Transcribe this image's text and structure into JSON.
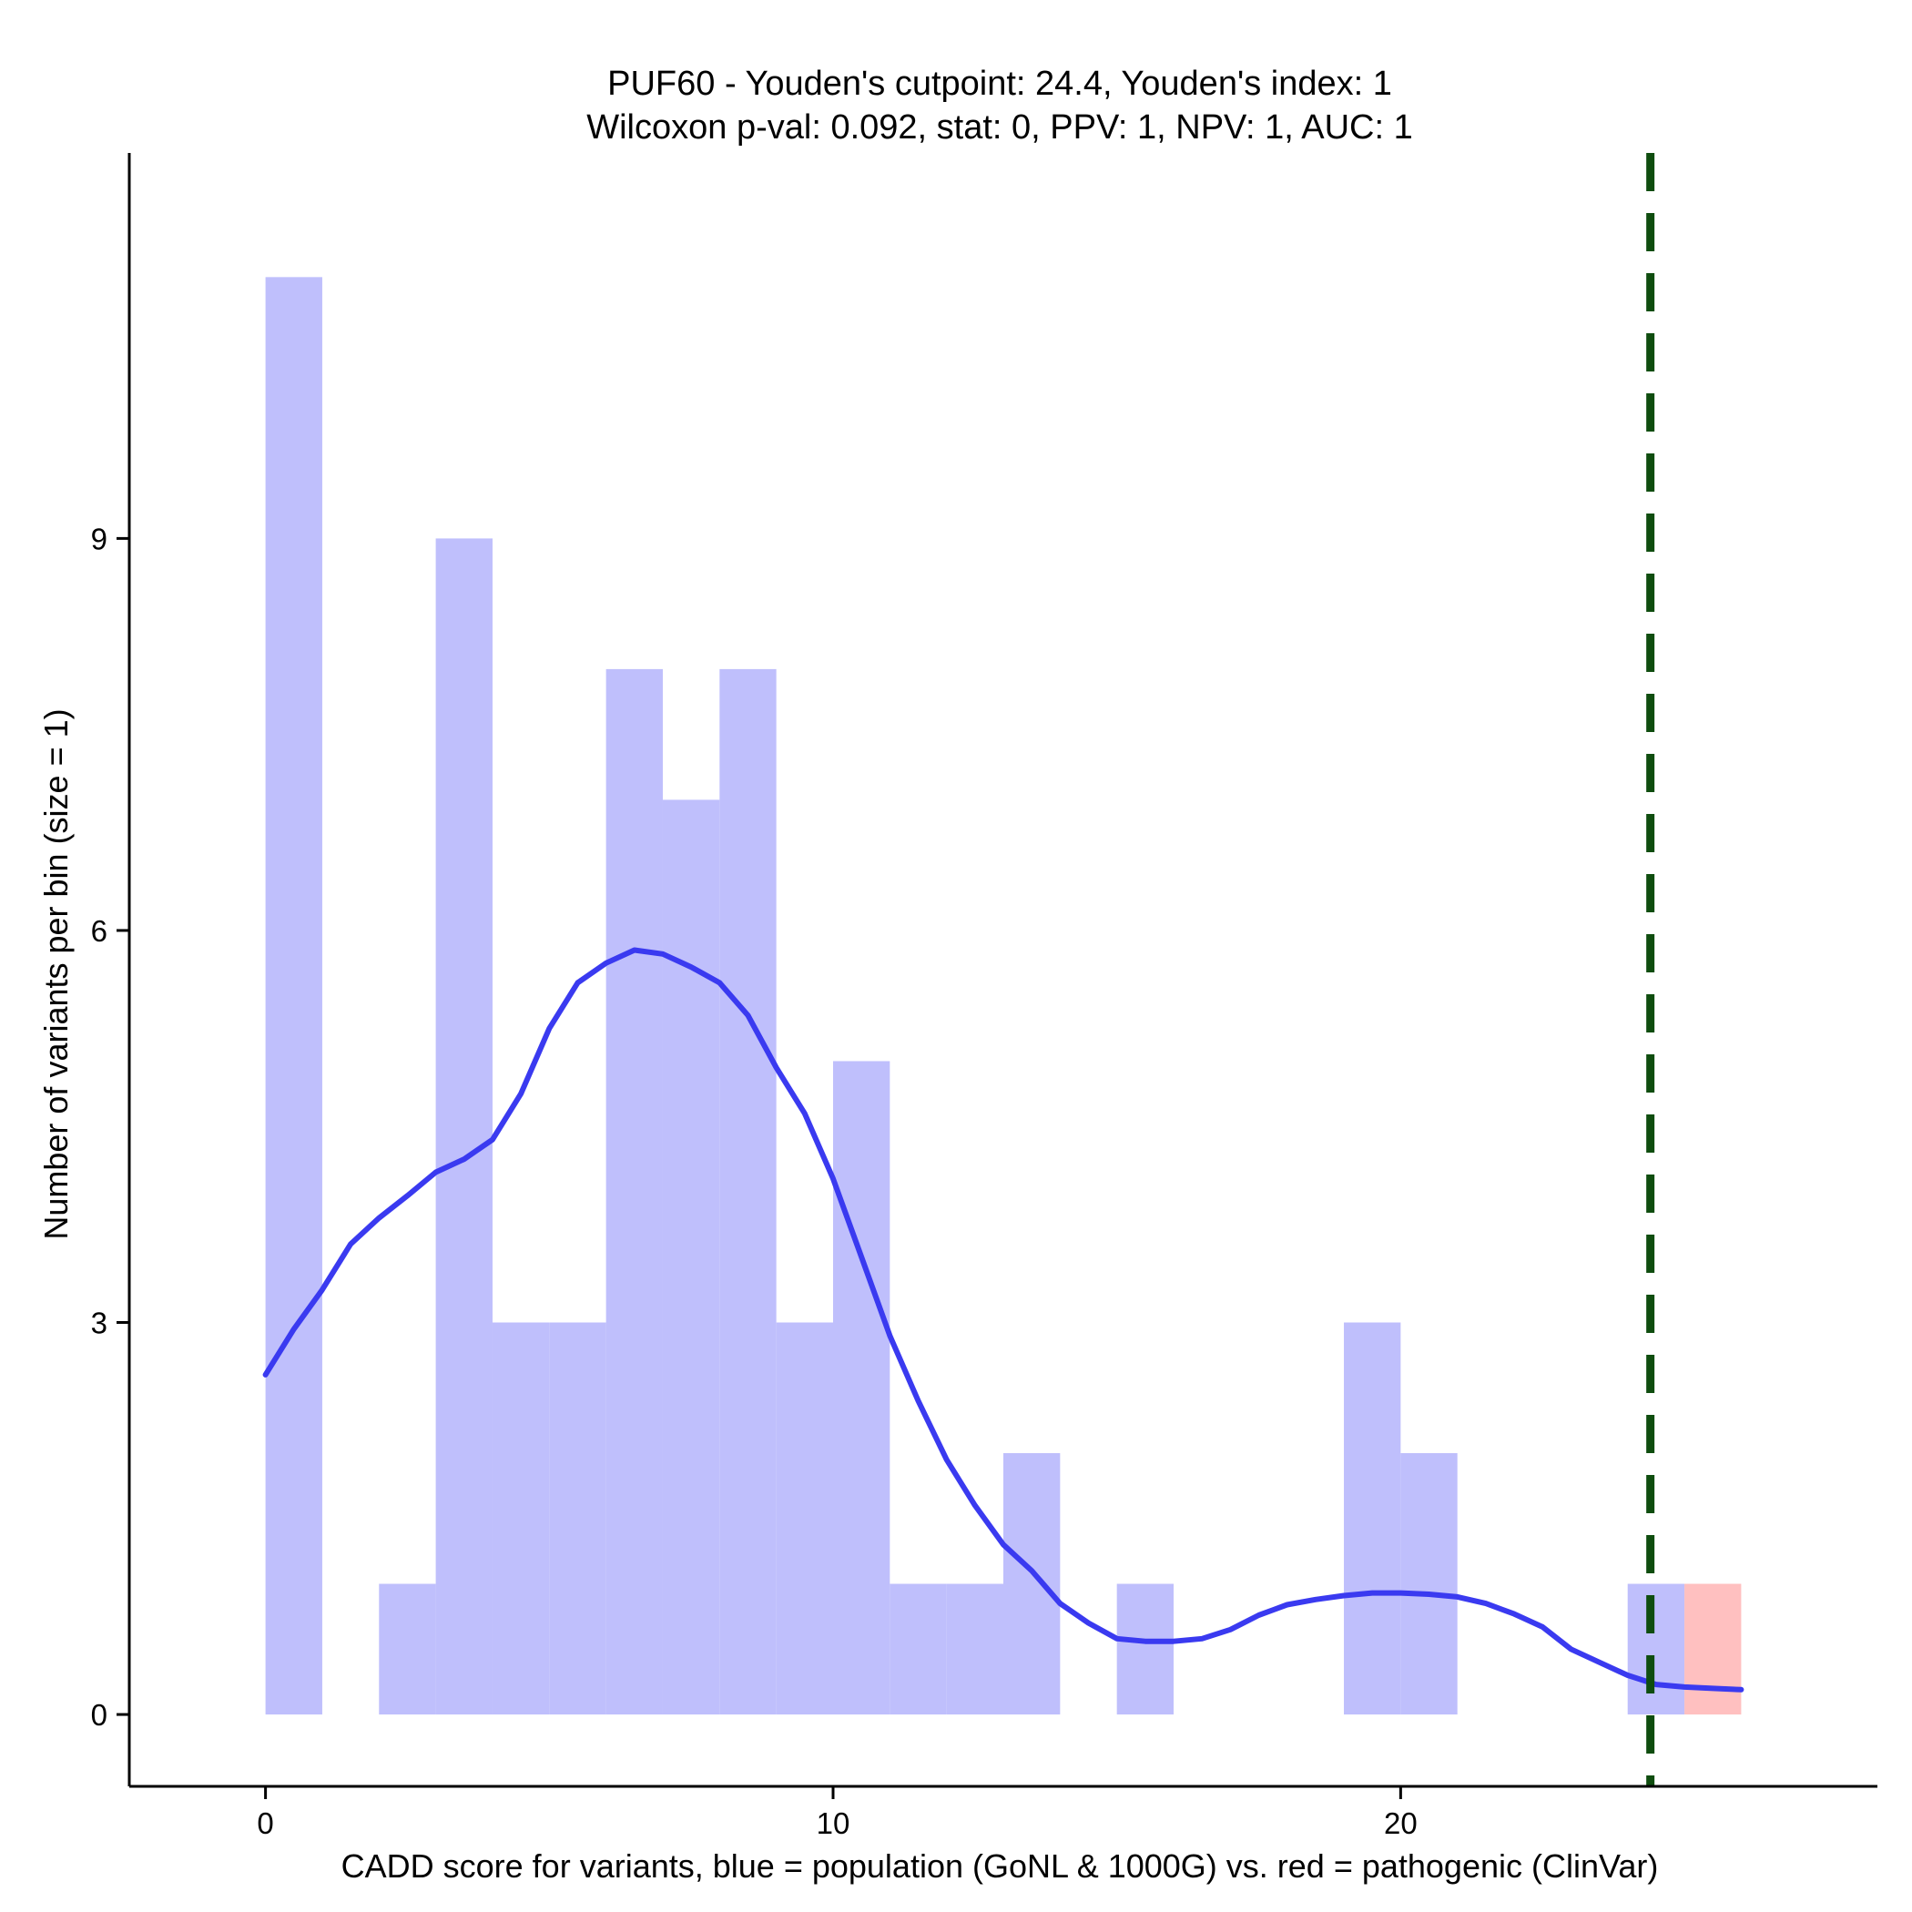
{
  "chart_data": {
    "type": "histogram",
    "title_line1": "PUF60 - Youden's cutpoint: 24.4, Youden's index: 1",
    "title_line2": "Wilcoxon p-val: 0.092, stat: 0, PPV: 1, NPV: 1, AUC: 1",
    "xlabel": "CADD score for variants, blue = population (GoNL & 1000G) vs. red = pathogenic (ClinVar)",
    "ylabel": "Number of variants per bin (size = 1)",
    "xlim": [
      -2.4,
      28.4
    ],
    "ylim": [
      -0.55,
      11.95
    ],
    "x_ticks": [
      0,
      10,
      20
    ],
    "y_ticks": [
      0,
      3,
      6,
      9
    ],
    "bin_size": 1,
    "series": [
      {
        "color": "#bfbffc",
        "bins": [
          {
            "x0": 0,
            "x1": 1,
            "count": 11
          },
          {
            "x0": 2,
            "x1": 3,
            "count": 1
          },
          {
            "x0": 3,
            "x1": 4,
            "count": 9
          },
          {
            "x0": 4,
            "x1": 5,
            "count": 3
          },
          {
            "x0": 5,
            "x1": 6,
            "count": 3
          },
          {
            "x0": 6,
            "x1": 7,
            "count": 8
          },
          {
            "x0": 7,
            "x1": 8,
            "count": 7
          },
          {
            "x0": 8,
            "x1": 9,
            "count": 8
          },
          {
            "x0": 9,
            "x1": 10,
            "count": 3
          },
          {
            "x0": 10,
            "x1": 11,
            "count": 5
          },
          {
            "x0": 11,
            "x1": 12,
            "count": 1
          },
          {
            "x0": 12,
            "x1": 13,
            "count": 1
          },
          {
            "x0": 13,
            "x1": 14,
            "count": 2
          },
          {
            "x0": 15,
            "x1": 16,
            "count": 1
          },
          {
            "x0": 19,
            "x1": 20,
            "count": 3
          },
          {
            "x0": 20,
            "x1": 21,
            "count": 2
          },
          {
            "x0": 24,
            "x1": 25,
            "count": 1
          }
        ]
      },
      {
        "color": "#ffc0c0",
        "bins": [
          {
            "x0": 25,
            "x1": 26,
            "count": 1
          }
        ]
      }
    ],
    "density_curve": {
      "color": "#3a3af0",
      "points": [
        [
          0,
          2.6
        ],
        [
          0.5,
          2.95
        ],
        [
          1,
          3.25
        ],
        [
          1.5,
          3.6
        ],
        [
          2,
          3.8
        ],
        [
          2.5,
          3.97
        ],
        [
          3,
          4.15
        ],
        [
          3.5,
          4.25
        ],
        [
          4,
          4.4
        ],
        [
          4.5,
          4.75
        ],
        [
          5,
          5.25
        ],
        [
          5.5,
          5.6
        ],
        [
          6,
          5.75
        ],
        [
          6.5,
          5.85
        ],
        [
          7,
          5.82
        ],
        [
          7.5,
          5.72
        ],
        [
          8,
          5.6
        ],
        [
          8.5,
          5.35
        ],
        [
          9,
          4.95
        ],
        [
          9.5,
          4.6
        ],
        [
          10,
          4.1
        ],
        [
          10.5,
          3.5
        ],
        [
          11,
          2.9
        ],
        [
          11.5,
          2.4
        ],
        [
          12,
          1.95
        ],
        [
          12.5,
          1.6
        ],
        [
          13,
          1.3
        ],
        [
          13.5,
          1.1
        ],
        [
          14,
          0.85
        ],
        [
          14.5,
          0.7
        ],
        [
          15,
          0.58
        ],
        [
          15.5,
          0.56
        ],
        [
          16,
          0.56
        ],
        [
          16.5,
          0.58
        ],
        [
          17,
          0.65
        ],
        [
          17.5,
          0.76
        ],
        [
          18,
          0.84
        ],
        [
          18.5,
          0.88
        ],
        [
          19,
          0.91
        ],
        [
          19.5,
          0.93
        ],
        [
          20,
          0.93
        ],
        [
          20.5,
          0.92
        ],
        [
          21,
          0.9
        ],
        [
          21.5,
          0.85
        ],
        [
          22,
          0.77
        ],
        [
          22.5,
          0.67
        ],
        [
          23,
          0.5
        ],
        [
          23.5,
          0.4
        ],
        [
          24,
          0.3
        ],
        [
          24.5,
          0.23
        ],
        [
          25,
          0.21
        ],
        [
          25.5,
          0.2
        ],
        [
          26,
          0.19
        ]
      ]
    },
    "cutpoint": {
      "x": 24.4,
      "color": "#0f4d0f",
      "style": "dashed"
    },
    "grid": false
  }
}
